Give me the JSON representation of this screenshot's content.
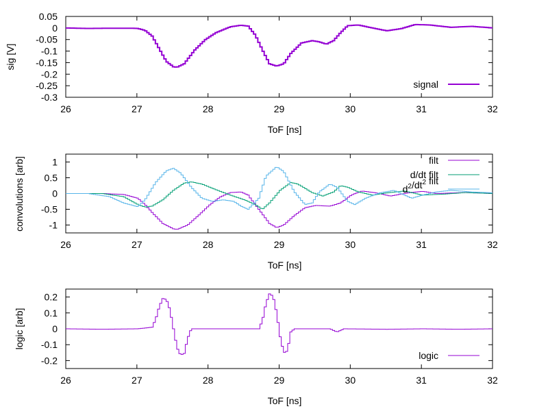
{
  "colors": {
    "purple": "#9400d3",
    "green": "#009e73",
    "cyan": "#56b4e9",
    "axis": "#000000"
  },
  "chart_data": [
    {
      "type": "line",
      "style": "step",
      "xlabel": "ToF [ns]",
      "ylabel": "sig [V]",
      "xlim": [
        26,
        32
      ],
      "ylim": [
        -0.3,
        0.05
      ],
      "xticks": [
        "26",
        "27",
        "28",
        "29",
        "30",
        "31",
        "32"
      ],
      "yticks": [
        "0.05",
        "0",
        "-0.05",
        "-0.1",
        "-0.15",
        "-0.2",
        "-0.25",
        "-0.3"
      ],
      "legend_position": "bottom-right",
      "grid": false,
      "series": [
        {
          "name": "signal",
          "color": "#9400d3",
          "points": [
            [
              26.0,
              0.0
            ],
            [
              26.3,
              -0.002
            ],
            [
              26.6,
              -0.001
            ],
            [
              26.9,
              -0.001
            ],
            [
              27.0,
              -0.002
            ],
            [
              27.1,
              -0.01
            ],
            [
              27.2,
              -0.035
            ],
            [
              27.3,
              -0.09
            ],
            [
              27.4,
              -0.145
            ],
            [
              27.5,
              -0.168
            ],
            [
              27.55,
              -0.17
            ],
            [
              27.65,
              -0.155
            ],
            [
              27.8,
              -0.095
            ],
            [
              27.95,
              -0.05
            ],
            [
              28.1,
              -0.02
            ],
            [
              28.3,
              0.005
            ],
            [
              28.45,
              0.012
            ],
            [
              28.55,
              0.008
            ],
            [
              28.65,
              -0.03
            ],
            [
              28.75,
              -0.095
            ],
            [
              28.85,
              -0.155
            ],
            [
              28.95,
              -0.165
            ],
            [
              29.05,
              -0.155
            ],
            [
              29.15,
              -0.11
            ],
            [
              29.3,
              -0.065
            ],
            [
              29.45,
              -0.055
            ],
            [
              29.55,
              -0.06
            ],
            [
              29.65,
              -0.07
            ],
            [
              29.75,
              -0.055
            ],
            [
              29.85,
              -0.02
            ],
            [
              29.95,
              0.01
            ],
            [
              30.1,
              0.013
            ],
            [
              30.3,
              0.0
            ],
            [
              30.5,
              -0.012
            ],
            [
              30.7,
              -0.003
            ],
            [
              30.9,
              0.015
            ],
            [
              31.1,
              0.013
            ],
            [
              31.4,
              0.003
            ],
            [
              31.7,
              0.007
            ],
            [
              32.0,
              0.0
            ]
          ]
        }
      ]
    },
    {
      "type": "line",
      "style": "step",
      "xlabel": "ToF [ns]",
      "ylabel": "convolutions [arb]",
      "xlim": [
        26,
        32
      ],
      "ylim": [
        -1.25,
        1.25
      ],
      "xticks": [
        "26",
        "27",
        "28",
        "29",
        "30",
        "31",
        "32"
      ],
      "yticks": [
        "1",
        "0.5",
        "0",
        "-0.5",
        "-1"
      ],
      "legend_position": "top-right",
      "grid": false,
      "series": [
        {
          "name": "filt",
          "color": "#9400d3",
          "points": [
            [
              26.0,
              0.0
            ],
            [
              26.5,
              0.0
            ],
            [
              26.8,
              -0.03
            ],
            [
              27.0,
              -0.15
            ],
            [
              27.1,
              -0.35
            ],
            [
              27.2,
              -0.6
            ],
            [
              27.35,
              -0.95
            ],
            [
              27.5,
              -1.12
            ],
            [
              27.55,
              -1.14
            ],
            [
              27.7,
              -1.0
            ],
            [
              27.85,
              -0.7
            ],
            [
              28.0,
              -0.38
            ],
            [
              28.15,
              -0.12
            ],
            [
              28.3,
              0.03
            ],
            [
              28.45,
              0.05
            ],
            [
              28.55,
              -0.05
            ],
            [
              28.7,
              -0.5
            ],
            [
              28.85,
              -0.95
            ],
            [
              28.95,
              -1.08
            ],
            [
              29.05,
              -1.0
            ],
            [
              29.2,
              -0.7
            ],
            [
              29.35,
              -0.45
            ],
            [
              29.5,
              -0.38
            ],
            [
              29.7,
              -0.4
            ],
            [
              29.85,
              -0.3
            ],
            [
              30.0,
              -0.05
            ],
            [
              30.15,
              0.08
            ],
            [
              30.35,
              0.02
            ],
            [
              30.55,
              -0.08
            ],
            [
              30.8,
              0.02
            ],
            [
              31.0,
              0.07
            ],
            [
              31.2,
              0.0
            ],
            [
              31.6,
              0.03
            ],
            [
              32.0,
              0.0
            ]
          ]
        },
        {
          "name": "d/dt filt",
          "color": "#009e73",
          "points": [
            [
              26.0,
              0.0
            ],
            [
              26.5,
              0.0
            ],
            [
              26.8,
              -0.1
            ],
            [
              27.0,
              -0.35
            ],
            [
              27.1,
              -0.43
            ],
            [
              27.2,
              -0.4
            ],
            [
              27.35,
              -0.2
            ],
            [
              27.5,
              0.1
            ],
            [
              27.65,
              0.33
            ],
            [
              27.75,
              0.37
            ],
            [
              27.9,
              0.3
            ],
            [
              28.1,
              0.12
            ],
            [
              28.3,
              -0.05
            ],
            [
              28.5,
              -0.2
            ],
            [
              28.65,
              -0.35
            ],
            [
              28.75,
              -0.5
            ],
            [
              28.85,
              -0.3
            ],
            [
              29.0,
              0.1
            ],
            [
              29.15,
              0.35
            ],
            [
              29.25,
              0.3
            ],
            [
              29.45,
              0.03
            ],
            [
              29.6,
              -0.08
            ],
            [
              29.75,
              0.05
            ],
            [
              29.85,
              0.25
            ],
            [
              29.95,
              0.2
            ],
            [
              30.1,
              0.05
            ],
            [
              30.3,
              -0.05
            ],
            [
              30.5,
              0.02
            ],
            [
              30.75,
              0.08
            ],
            [
              31.0,
              -0.05
            ],
            [
              31.3,
              -0.02
            ],
            [
              31.6,
              0.03
            ],
            [
              32.0,
              0.0
            ]
          ]
        },
        {
          "name": "d²/dt² filt",
          "color": "#56b4e9",
          "points": [
            [
              26.0,
              0.0
            ],
            [
              26.3,
              0.0
            ],
            [
              26.6,
              -0.1
            ],
            [
              26.8,
              -0.3
            ],
            [
              27.0,
              -0.42
            ],
            [
              27.1,
              -0.2
            ],
            [
              27.25,
              0.35
            ],
            [
              27.4,
              0.72
            ],
            [
              27.5,
              0.8
            ],
            [
              27.6,
              0.65
            ],
            [
              27.75,
              0.2
            ],
            [
              27.9,
              -0.15
            ],
            [
              28.05,
              -0.25
            ],
            [
              28.2,
              -0.2
            ],
            [
              28.35,
              -0.25
            ],
            [
              28.45,
              -0.4
            ],
            [
              28.55,
              -0.5
            ],
            [
              28.7,
              -0.15
            ],
            [
              28.8,
              0.55
            ],
            [
              28.95,
              0.85
            ],
            [
              29.05,
              0.7
            ],
            [
              29.2,
              0.05
            ],
            [
              29.35,
              -0.35
            ],
            [
              29.45,
              -0.3
            ],
            [
              29.55,
              0.05
            ],
            [
              29.7,
              0.3
            ],
            [
              29.8,
              0.2
            ],
            [
              29.95,
              -0.25
            ],
            [
              30.05,
              -0.35
            ],
            [
              30.2,
              -0.15
            ],
            [
              30.4,
              0.02
            ],
            [
              30.6,
              0.1
            ],
            [
              30.85,
              -0.15
            ],
            [
              31.0,
              -0.05
            ],
            [
              31.2,
              0.05
            ],
            [
              31.4,
              0.1
            ],
            [
              31.7,
              0.05
            ],
            [
              32.0,
              0.02
            ]
          ]
        }
      ]
    },
    {
      "type": "line",
      "style": "step",
      "xlabel": "ToF [ns]",
      "ylabel": "logic [arb]",
      "xlim": [
        26,
        32
      ],
      "ylim": [
        -0.25,
        0.25
      ],
      "xticks": [
        "26",
        "27",
        "28",
        "29",
        "30",
        "31",
        "32"
      ],
      "yticks": [
        "0.2",
        "0.1",
        "0",
        "-0.1",
        "-0.2"
      ],
      "legend_position": "bottom-right",
      "grid": false,
      "series": [
        {
          "name": "logic",
          "color": "#9400d3",
          "points": [
            [
              26.0,
              0.0
            ],
            [
              26.5,
              -0.003
            ],
            [
              27.0,
              0.0
            ],
            [
              27.2,
              0.01
            ],
            [
              27.25,
              0.06
            ],
            [
              27.3,
              0.14
            ],
            [
              27.35,
              0.19
            ],
            [
              27.4,
              0.185
            ],
            [
              27.45,
              0.12
            ],
            [
              27.5,
              0.0
            ],
            [
              27.55,
              -0.12
            ],
            [
              27.6,
              -0.165
            ],
            [
              27.65,
              -0.155
            ],
            [
              27.7,
              -0.06
            ],
            [
              27.75,
              0.0
            ],
            [
              28.7,
              0.0
            ],
            [
              28.75,
              0.05
            ],
            [
              28.8,
              0.16
            ],
            [
              28.85,
              0.22
            ],
            [
              28.9,
              0.205
            ],
            [
              28.95,
              0.1
            ],
            [
              29.0,
              -0.05
            ],
            [
              29.05,
              -0.15
            ],
            [
              29.1,
              -0.14
            ],
            [
              29.15,
              -0.02
            ],
            [
              29.2,
              0.0
            ],
            [
              29.7,
              0.0
            ],
            [
              29.8,
              -0.02
            ],
            [
              29.9,
              0.0
            ],
            [
              30.5,
              -0.003
            ],
            [
              31.0,
              0.0
            ],
            [
              31.5,
              -0.003
            ],
            [
              32.0,
              0.0
            ]
          ]
        }
      ]
    }
  ]
}
